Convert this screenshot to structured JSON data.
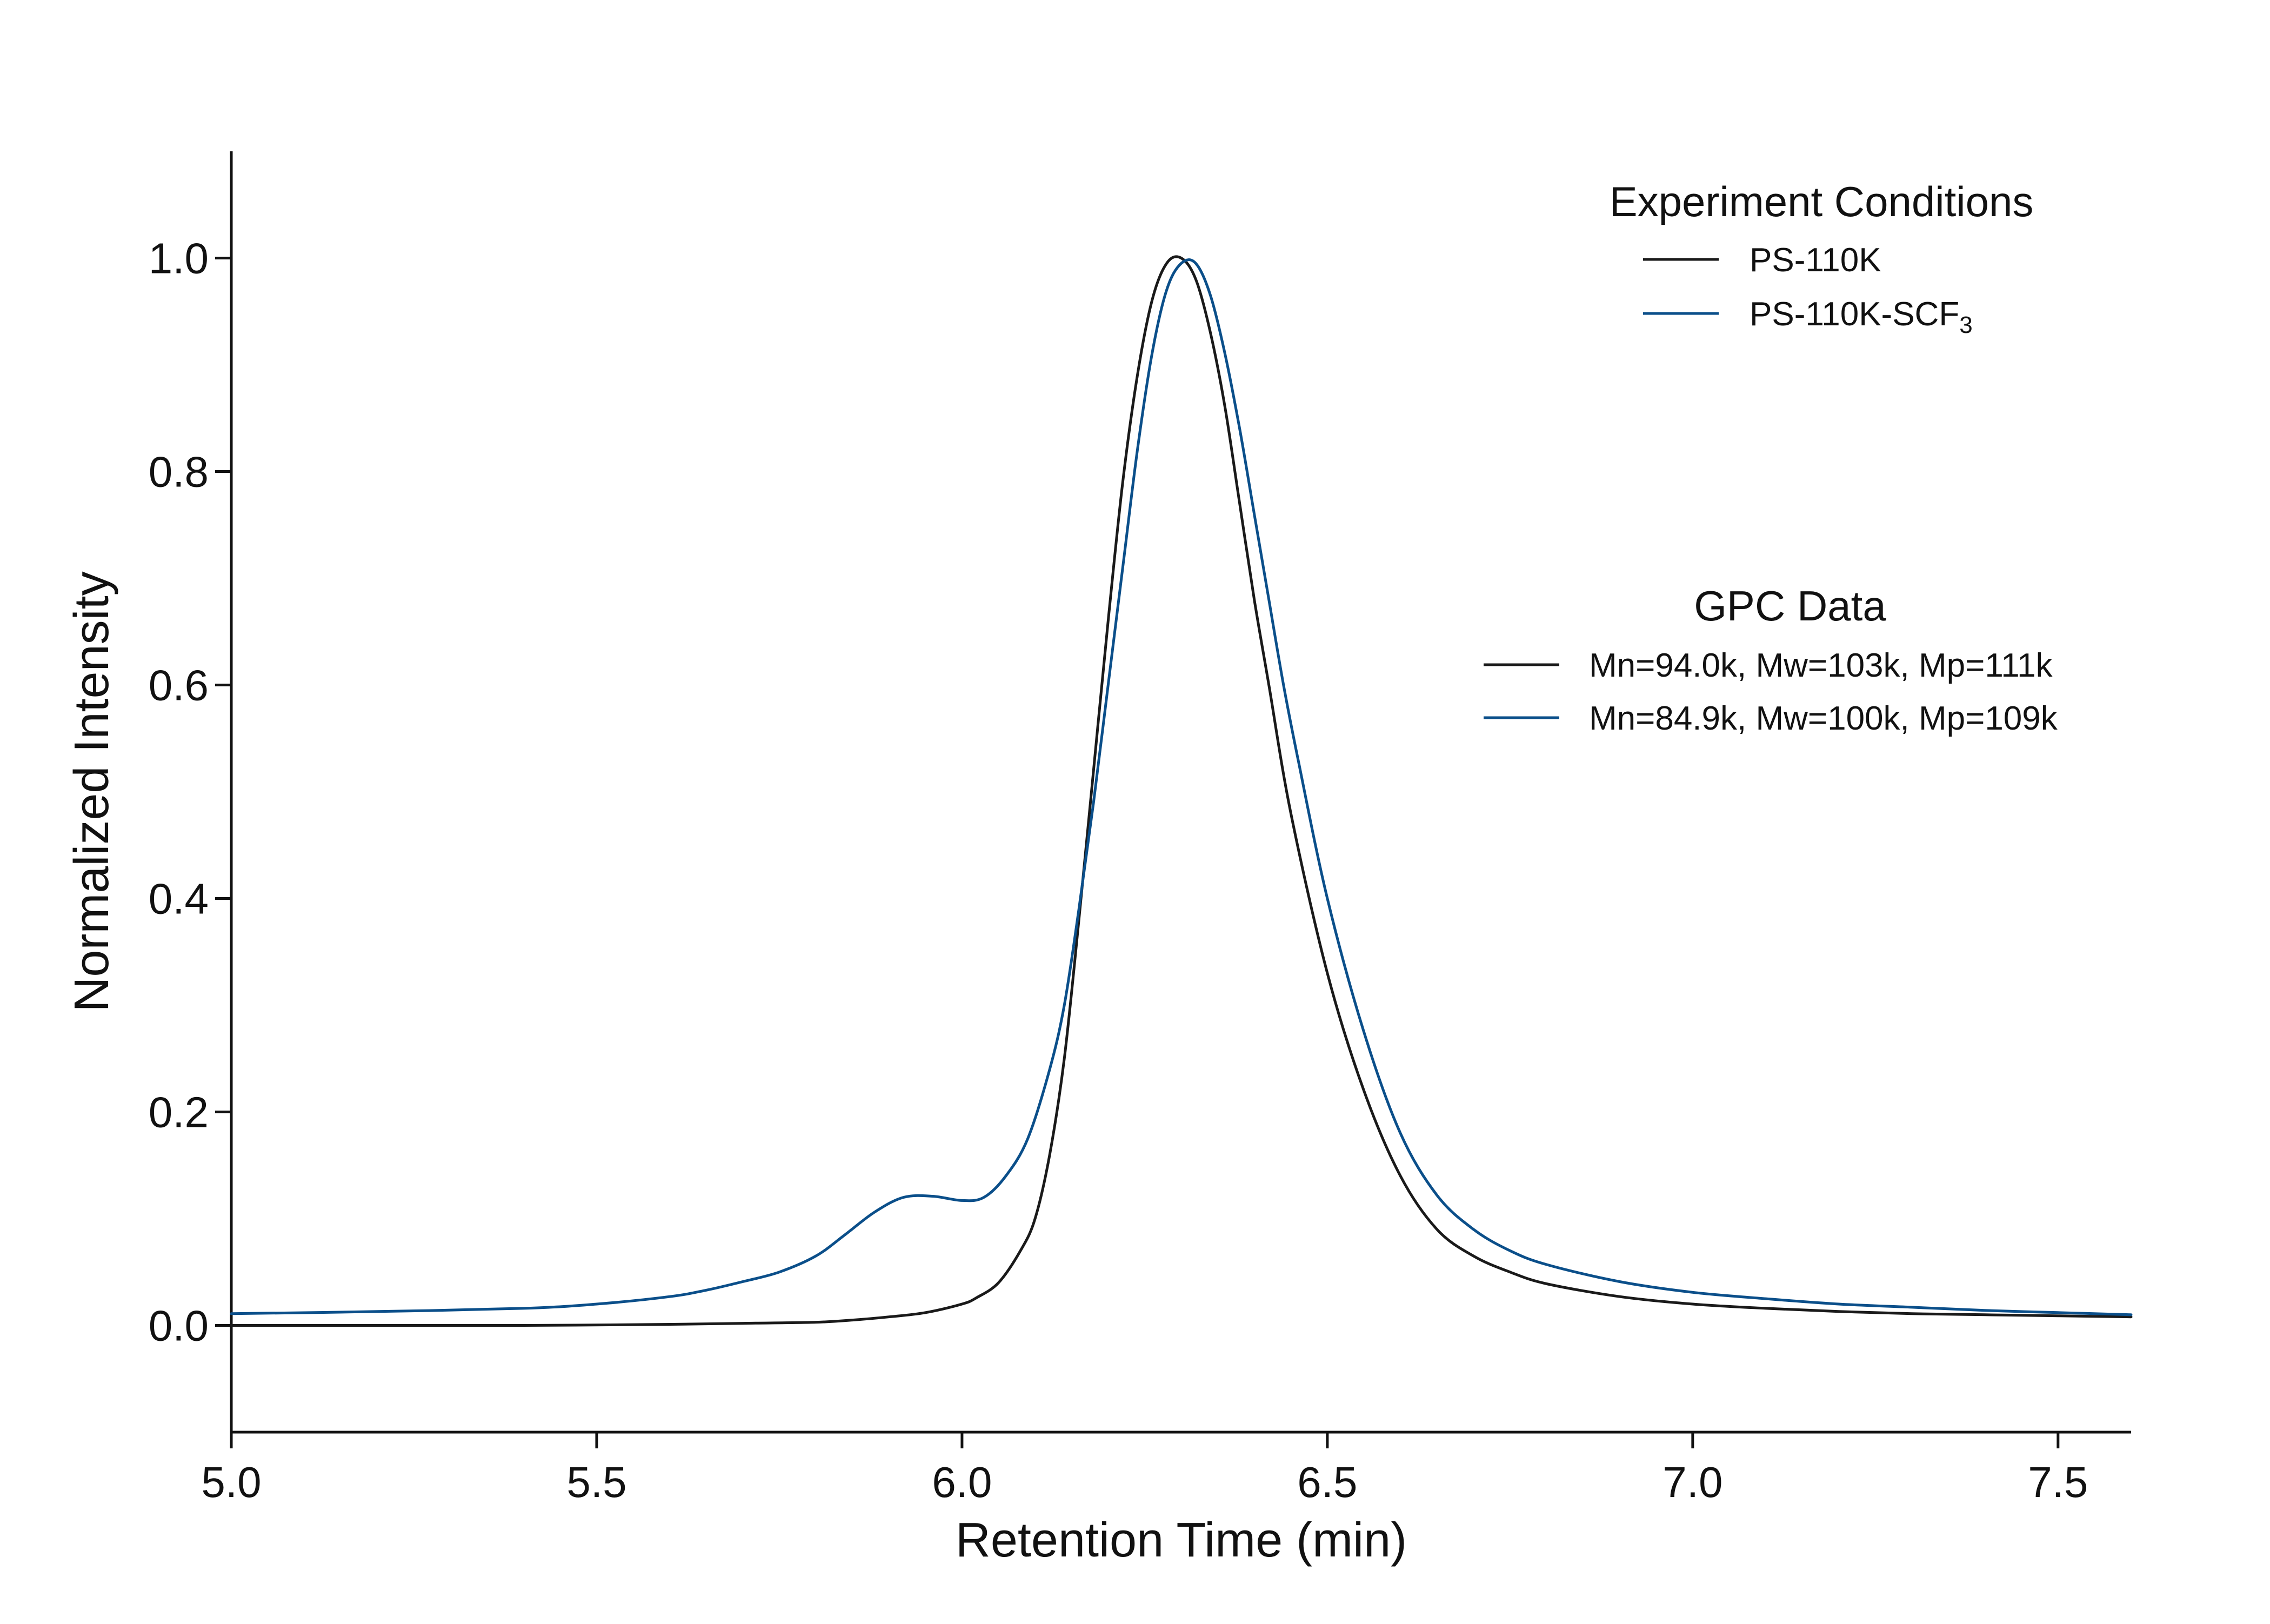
{
  "chart_data": {
    "type": "line",
    "xlabel": "Retention Time (min)",
    "ylabel": "Normalized Intensity",
    "xlim": [
      5.0,
      7.6
    ],
    "ylim": [
      -0.1,
      1.1
    ],
    "xticks": [
      {
        "value": 5.0,
        "label": "5.0"
      },
      {
        "value": 5.5,
        "label": "5.5"
      },
      {
        "value": 6.0,
        "label": "6.0"
      },
      {
        "value": 6.5,
        "label": "6.5"
      },
      {
        "value": 7.0,
        "label": "7.0"
      },
      {
        "value": 7.5,
        "label": "7.5"
      }
    ],
    "yticks": [
      {
        "value": 0.0,
        "label": "0.0"
      },
      {
        "value": 0.2,
        "label": "0.2"
      },
      {
        "value": 0.4,
        "label": "0.4"
      },
      {
        "value": 0.6,
        "label": "0.6"
      },
      {
        "value": 0.8,
        "label": "0.8"
      },
      {
        "value": 1.0,
        "label": "1.0"
      }
    ],
    "grid": false,
    "legends": [
      {
        "title": "Experiment Conditions",
        "placement": "top-right",
        "entries": [
          {
            "label": "PS-110K",
            "subscript": "",
            "color": "#1a1a1a"
          },
          {
            "label": "PS-110K-SCF",
            "subscript": "3",
            "color": "#0b4f8a"
          }
        ]
      },
      {
        "title": "GPC Data",
        "placement": "right",
        "entries": [
          {
            "label": "Mn=94.0k, Mw=103k, Mp=111k",
            "subscript": "",
            "color": "#1a1a1a"
          },
          {
            "label": "Mn=84.9k, Mw=100k, Mp=109k",
            "subscript": "",
            "color": "#0b4f8a"
          }
        ]
      }
    ],
    "series": [
      {
        "name": "PS-110K",
        "color": "#1a1a1a",
        "x": [
          5.0,
          5.2,
          5.4,
          5.6,
          5.7,
          5.8,
          5.85,
          5.9,
          5.95,
          6.0,
          6.02,
          6.05,
          6.08,
          6.1,
          6.12,
          6.14,
          6.16,
          6.18,
          6.2,
          6.22,
          6.24,
          6.26,
          6.28,
          6.3,
          6.32,
          6.34,
          6.36,
          6.38,
          6.4,
          6.42,
          6.45,
          6.5,
          6.55,
          6.6,
          6.65,
          6.7,
          6.75,
          6.8,
          6.9,
          7.0,
          7.1,
          7.2,
          7.3,
          7.4,
          7.5,
          7.6
        ],
        "y": [
          0.0,
          0.0,
          0.0,
          0.001,
          0.002,
          0.003,
          0.005,
          0.008,
          0.012,
          0.02,
          0.026,
          0.04,
          0.07,
          0.1,
          0.16,
          0.25,
          0.38,
          0.52,
          0.66,
          0.79,
          0.89,
          0.96,
          0.995,
          1.0,
          0.98,
          0.93,
          0.86,
          0.77,
          0.68,
          0.6,
          0.48,
          0.33,
          0.22,
          0.14,
          0.09,
          0.065,
          0.05,
          0.039,
          0.027,
          0.02,
          0.016,
          0.013,
          0.011,
          0.01,
          0.009,
          0.008
        ]
      },
      {
        "name": "PS-110K-SCF3",
        "color": "#0b4f8a",
        "x": [
          5.0,
          5.2,
          5.4,
          5.5,
          5.6,
          5.65,
          5.7,
          5.75,
          5.8,
          5.84,
          5.88,
          5.92,
          5.96,
          6.0,
          6.03,
          6.06,
          6.09,
          6.12,
          6.14,
          6.16,
          6.18,
          6.2,
          6.22,
          6.24,
          6.26,
          6.28,
          6.3,
          6.32,
          6.34,
          6.36,
          6.38,
          6.4,
          6.42,
          6.44,
          6.46,
          6.5,
          6.55,
          6.6,
          6.65,
          6.7,
          6.75,
          6.8,
          6.9,
          7.0,
          7.1,
          7.2,
          7.3,
          7.4,
          7.5,
          7.6
        ],
        "y": [
          0.011,
          0.013,
          0.016,
          0.02,
          0.027,
          0.033,
          0.041,
          0.05,
          0.065,
          0.085,
          0.106,
          0.12,
          0.121,
          0.117,
          0.12,
          0.14,
          0.175,
          0.24,
          0.3,
          0.39,
          0.49,
          0.6,
          0.71,
          0.82,
          0.91,
          0.97,
          0.995,
          0.995,
          0.965,
          0.91,
          0.84,
          0.76,
          0.68,
          0.6,
          0.53,
          0.4,
          0.275,
          0.18,
          0.122,
          0.09,
          0.07,
          0.057,
          0.041,
          0.031,
          0.025,
          0.02,
          0.017,
          0.014,
          0.012,
          0.01
        ]
      }
    ]
  }
}
